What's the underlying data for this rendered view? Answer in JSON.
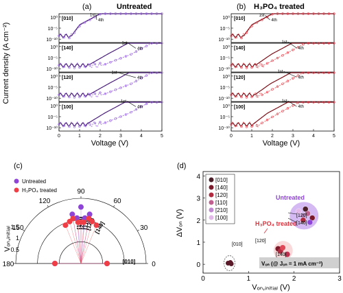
{
  "panel_a": {
    "letter": "(a)",
    "title": "Untreated",
    "ylabel": "Current density (A cm⁻²)",
    "xlabel": "Voltage (V)",
    "x_ticks": [
      "0",
      "1",
      "2",
      "3",
      "4",
      "5"
    ],
    "y_tick_labels": [
      "10⁰",
      "10⁻⁵",
      "10⁻¹⁰"
    ],
    "annot_first": "1st",
    "annot_fourth": "4th",
    "colors": {
      "first": "#4a1f7a",
      "fourth": "#b48ae8",
      "points": "#9b6ae0"
    },
    "subplots": [
      {
        "label": "[010]",
        "von_first": 1.0,
        "von_fourth": 1.05,
        "ann1": [
          1.5,
          0.4
        ],
        "ann4": [
          1.9,
          -1.9
        ]
      },
      {
        "label": "[140]",
        "von_first": 2.35,
        "von_fourth": 3.5,
        "ann1": [
          3.05,
          1.0
        ],
        "ann4": [
          3.8,
          -1.4
        ]
      },
      {
        "label": "[120]",
        "von_first": 2.4,
        "von_fourth": 3.5,
        "ann1": [
          2.55,
          1.0
        ],
        "ann4": [
          3.8,
          -1.3
        ]
      },
      {
        "label": "[100]",
        "von_first": 2.2,
        "von_fourth": 3.4,
        "ann1": [
          3.0,
          1.4
        ],
        "ann4": [
          3.8,
          -1.1
        ]
      }
    ]
  },
  "panel_b": {
    "letter": "(b)",
    "title": "H₃PO₄ treated",
    "xlabel": "Voltage (V)",
    "x_ticks": [
      "0",
      "1",
      "2",
      "3",
      "4",
      "5"
    ],
    "annot_first": "1st",
    "annot_fourth": "4th",
    "colors": {
      "first": "#7a0f18",
      "fourth": "#f08080",
      "points": "#e84050"
    },
    "subplots": [
      {
        "label": "[010]",
        "von_first": 1.0,
        "von_fourth": 1.05,
        "ann1": [
          1.35,
          0.2
        ],
        "ann4": [
          1.95,
          -1.9
        ]
      },
      {
        "label": "[140]",
        "von_first": 1.95,
        "von_fourth": 2.6,
        "ann1": [
          2.45,
          1.5
        ],
        "ann4": [
          3.25,
          -1.3
        ]
      },
      {
        "label": "[120]",
        "von_first": 1.9,
        "von_fourth": 2.5,
        "ann1": [
          2.25,
          1.5
        ],
        "ann4": [
          3.25,
          -1.1
        ]
      },
      {
        "label": "[100]",
        "von_first": 1.75,
        "von_fourth": 2.3,
        "ann1": [
          2.45,
          1.5
        ],
        "ann4": [
          3.25,
          -1.0
        ]
      }
    ]
  },
  "panel_c": {
    "letter": "(c)",
    "ylabel": "Vₒₙ,ᵢₙᵢₜᵢₐₗ",
    "legend": [
      {
        "label": "Untreated",
        "color": "#8e44d6"
      },
      {
        "label": "H₃PO₄ treated",
        "color": "#ef3e45"
      }
    ],
    "angle_ticks": [
      "0",
      "30",
      "60",
      "90",
      "120",
      "150",
      "180"
    ],
    "radial_ticks": [
      "0.5",
      "1",
      "1.5"
    ],
    "direction_labels": [
      "[100]",
      "[210]",
      "[110]",
      "[120]",
      "[140]",
      "[010]"
    ]
  },
  "panel_d": {
    "letter": "(d)",
    "ylabel": "ΔVₒₙ (V)",
    "xlabel": "Vₒₙ,ᵢₙᵢₜᵢₐₗ (V)",
    "x_ticks": [
      "0",
      "1",
      "2",
      "3"
    ],
    "y_ticks": [
      "0",
      "1",
      "2",
      "3",
      "4"
    ],
    "legend": [
      {
        "label": "[010]",
        "color": "#4a1f2a"
      },
      {
        "label": "[140]",
        "color": "#7a1a2a"
      },
      {
        "label": "[120]",
        "color": "#b02a40"
      },
      {
        "label": "[110]",
        "color": "#c06090"
      },
      {
        "label": "[210]",
        "color": "#c088d0"
      },
      {
        "label": "[100]",
        "color": "#e2b8e8"
      }
    ],
    "annot_untreated": "Untreated",
    "annot_treated": "H₃PO₄ treated",
    "annot_labels": [
      "[120]",
      "[140]",
      "[120]",
      "[140]",
      "[010]"
    ],
    "footnote": "Vₒₙ (@ Jₒₙ = 1 mA cm⁻²)"
  },
  "chart_data": [
    {
      "type": "line",
      "title": "Untreated",
      "xlabel": "Voltage (V)",
      "ylabel": "Current density (A cm⁻²)",
      "xlim": [
        0,
        5
      ],
      "y_log": true,
      "series": [
        {
          "name": "1st",
          "subplots": [
            "[010]",
            "[140]",
            "[120]",
            "[100]"
          ],
          "turn_on_V": [
            1.0,
            2.35,
            2.4,
            2.2
          ]
        },
        {
          "name": "4th",
          "subplots": [
            "[010]",
            "[140]",
            "[120]",
            "[100]"
          ],
          "turn_on_V": [
            1.05,
            3.5,
            3.5,
            3.4
          ]
        }
      ]
    },
    {
      "type": "line",
      "title": "H₃PO₄ treated",
      "xlabel": "Voltage (V)",
      "ylabel": "Current density (A cm⁻²)",
      "xlim": [
        0,
        5
      ],
      "y_log": true,
      "series": [
        {
          "name": "1st",
          "subplots": [
            "[010]",
            "[140]",
            "[120]",
            "[100]"
          ],
          "turn_on_V": [
            1.0,
            1.95,
            1.9,
            1.75
          ]
        },
        {
          "name": "4th",
          "subplots": [
            "[010]",
            "[140]",
            "[120]",
            "[100]"
          ],
          "turn_on_V": [
            1.05,
            2.6,
            2.5,
            2.3
          ]
        }
      ]
    },
    {
      "type": "scatter",
      "subtype": "polar",
      "theta_range": [
        0,
        180
      ],
      "r_range": [
        0,
        1.5
      ],
      "series": [
        {
          "name": "Untreated",
          "theta": [
            0,
            80,
            85,
            90,
            95,
            100,
            180
          ],
          "r": [
            0.6,
            1.15,
            1.05,
            1.3,
            1.05,
            1.15,
            0.6
          ]
        },
        {
          "name": "H₃PO₄ treated",
          "theta": [
            0,
            68,
            75,
            80,
            86,
            90,
            94,
            100,
            105,
            112,
            180
          ],
          "r": [
            0.6,
            0.95,
            1.0,
            1.05,
            0.95,
            0.95,
            0.95,
            1.05,
            1.0,
            0.95,
            0.6
          ]
        }
      ]
    },
    {
      "type": "scatter",
      "xlabel": "Vₒₙ,ᵢₙᵢₜᵢₐₗ (V)",
      "ylabel": "ΔVₒₙ (V)",
      "xlim": [
        0,
        3
      ],
      "ylim": [
        -0.4,
        4.2
      ],
      "series": [
        {
          "name": "Untreated",
          "x": [
            2.1,
            2.2,
            2.3,
            2.2,
            2.4,
            2.25,
            2.35
          ],
          "y": [
            2.4,
            2.2,
            2.3,
            2.0,
            2.1,
            2.5,
            1.9
          ]
        },
        {
          "name": "H₃PO₄ treated",
          "x": [
            1.65,
            1.7,
            1.85,
            1.75
          ],
          "y": [
            0.7,
            0.6,
            0.45,
            0.75
          ]
        },
        {
          "name": "[010]",
          "x": [
            0.55,
            0.6,
            0.62
          ],
          "y": [
            0.05,
            0.08,
            0.02
          ]
        }
      ]
    }
  ]
}
